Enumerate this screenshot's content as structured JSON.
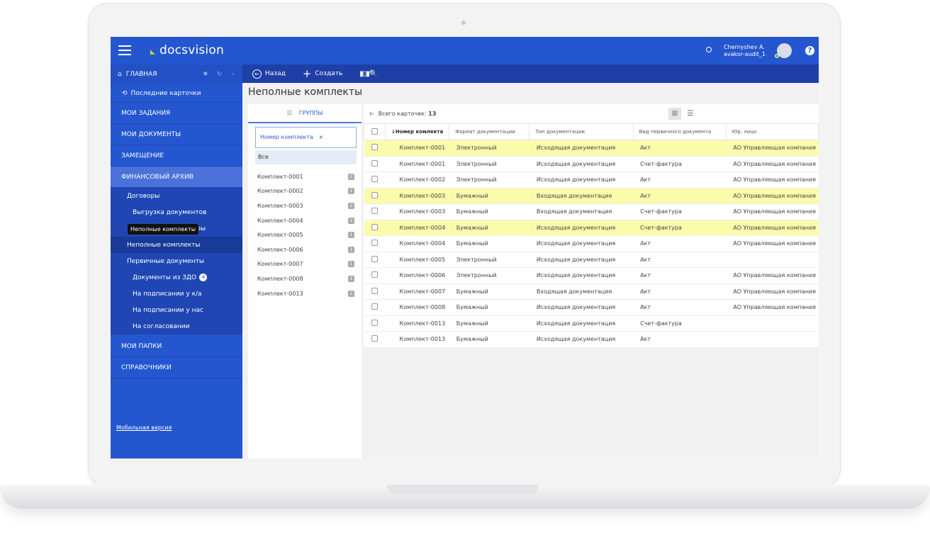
{
  "app": {
    "logo": "docsvision",
    "user_name": "Chernyshev A.",
    "user_login": "avakor-audit_1",
    "brand_color": "#2456cf",
    "accent_logo": "#b8d432"
  },
  "sidebar": {
    "home": "ГЛАВНАЯ",
    "recent": "Последние карточки",
    "sections": [
      "МОИ ЗАДАНИЯ",
      "МОИ ДОКУМЕНТЫ",
      "ЗАМЕЩЕНИЕ",
      "ФИНАНСОВЫЙ АРХИВ"
    ],
    "sub": [
      {
        "label": "Договоры",
        "level": 1
      },
      {
        "label": "Выгрузка документов",
        "level": 2
      },
      {
        "label": "оры",
        "level": 2
      },
      {
        "label": "Неполные комплекты",
        "level": 1,
        "selected": true
      },
      {
        "label": "Первичные документы",
        "level": 1
      },
      {
        "label": "Документы из ЗДО",
        "level": 2,
        "badge": "4"
      },
      {
        "label": "На подписании у к/а",
        "level": 2
      },
      {
        "label": "На подписании у нас",
        "level": 2
      },
      {
        "label": "На согласовании",
        "level": 2
      }
    ],
    "sections2": [
      "МОИ ПАПКИ",
      "СПРАВОЧНИКИ"
    ],
    "mobile": "Мобильная версия",
    "tooltip": "Неполные комплекты"
  },
  "toolbar": {
    "back": "Назад",
    "create": "Создать"
  },
  "page_title": "Неполные комплекты",
  "groups": {
    "tab": "ГРУППЫ",
    "filter": "Номер комплекта",
    "all": "Все",
    "items": [
      [
        "Комплект-0001",
        "2"
      ],
      [
        "Комплект-0002",
        "1"
      ],
      [
        "Комплект-0003",
        "2"
      ],
      [
        "Комплект-0004",
        "2"
      ],
      [
        "Комплект-0005",
        "1"
      ],
      [
        "Комплект-0006",
        "1"
      ],
      [
        "Комплект-0007",
        "1"
      ],
      [
        "Комплект-0008",
        "1"
      ],
      [
        "Комплект-0013",
        "2"
      ]
    ]
  },
  "table": {
    "total_label": "Всего карточек:",
    "total": "13",
    "columns": [
      "Номер комлекта",
      "Формат документации",
      "Тип документации",
      "Вид первичного документа",
      "Юр. лицо"
    ],
    "rows": [
      {
        "cells": [
          "Комплект-0001",
          "Электронный",
          "Исходящая документация",
          "Акт",
          "АО Управляющая компания"
        ],
        "highlight": true
      },
      {
        "cells": [
          "Комплект-0001",
          "Электронный",
          "Исходящая документация",
          "Счет-фактура",
          "АО Управляющая компания"
        ]
      },
      {
        "cells": [
          "Комплект-0002",
          "Электронный",
          "Исходящая документация",
          "Акт",
          "АО Управляющая компания"
        ]
      },
      {
        "cells": [
          "Комплект-0003",
          "Бумажный",
          "Входящая документация",
          "Акт",
          "АО Управляющая компания"
        ],
        "highlight": true
      },
      {
        "cells": [
          "Комплект-0003",
          "Бумажный",
          "Входящая документация",
          "Счет-фактура",
          "АО Управляющая компания"
        ]
      },
      {
        "cells": [
          "Комплект-0004",
          "Бумажный",
          "Исходящая документация",
          "Счет-фактура",
          "АО Управляющая компания"
        ],
        "highlight": true
      },
      {
        "cells": [
          "Комплект-0004",
          "Бумажный",
          "Исходящая документация",
          "Акт",
          "АО Управляющая компания"
        ]
      },
      {
        "cells": [
          "Комплект-0005",
          "Электронный",
          "Исходящая документация",
          "Акт",
          ""
        ]
      },
      {
        "cells": [
          "Комплект-0006",
          "Электронный",
          "Исходящая документация",
          "Акт",
          "АО Управляющая компания"
        ]
      },
      {
        "cells": [
          "Комплект-0007",
          "Бумажный",
          "Входящая документация",
          "Акт",
          "АО Управляющая компания"
        ]
      },
      {
        "cells": [
          "Комплект-0008",
          "Бумажный",
          "Исходящая документация",
          "Акт",
          "АО Управляющая компания"
        ]
      },
      {
        "cells": [
          "Комплект-0013",
          "Бумажный",
          "Исходящая документация",
          "Счет-фактура",
          ""
        ]
      },
      {
        "cells": [
          "Комплект-0013",
          "Бумажный",
          "Исходящая документация",
          "Акт",
          ""
        ]
      }
    ]
  }
}
